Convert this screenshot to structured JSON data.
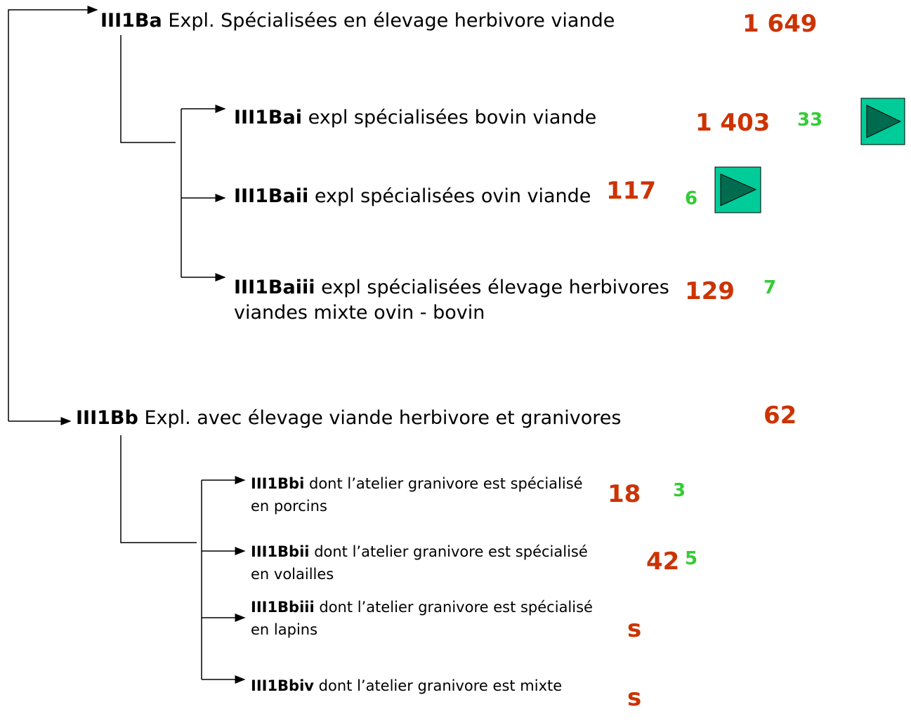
{
  "nodes": [
    {
      "code": "III1Ba",
      "label": "Expl. Spécialisées en élevage herbivore viande",
      "count": "1 649"
    },
    {
      "code": "III1Bai",
      "label": "expl spécialisées bovin viande",
      "count": "1 403",
      "sub": "33"
    },
    {
      "code": "III1Baii",
      "label": "expl spécialisées ovin viande",
      "count": "117",
      "sub": "6"
    },
    {
      "code": "III1Baiii",
      "label": "expl spécialisées élevage herbivores viandes mixte ovin - bovin",
      "count": "129",
      "sub": "7"
    },
    {
      "code": "III1Bb",
      "label": "Expl. avec élevage viande herbivore et granivores",
      "count": "62"
    },
    {
      "code": "III1Bbi",
      "label": "dont l’atelier granivore est spécialisé en porcins",
      "count": "18",
      "sub": "3"
    },
    {
      "code": "III1Bbii",
      "label": "dont l’atelier granivore est spécialisé en volailles",
      "count": "42",
      "sub": "5"
    },
    {
      "code": "III1Bbiii",
      "label": "dont l’atelier granivore est spécialisé en lapins",
      "count": "s"
    },
    {
      "code": "III1Bbiv",
      "label": "dont l’atelier granivore est mixte",
      "count": "s"
    }
  ]
}
